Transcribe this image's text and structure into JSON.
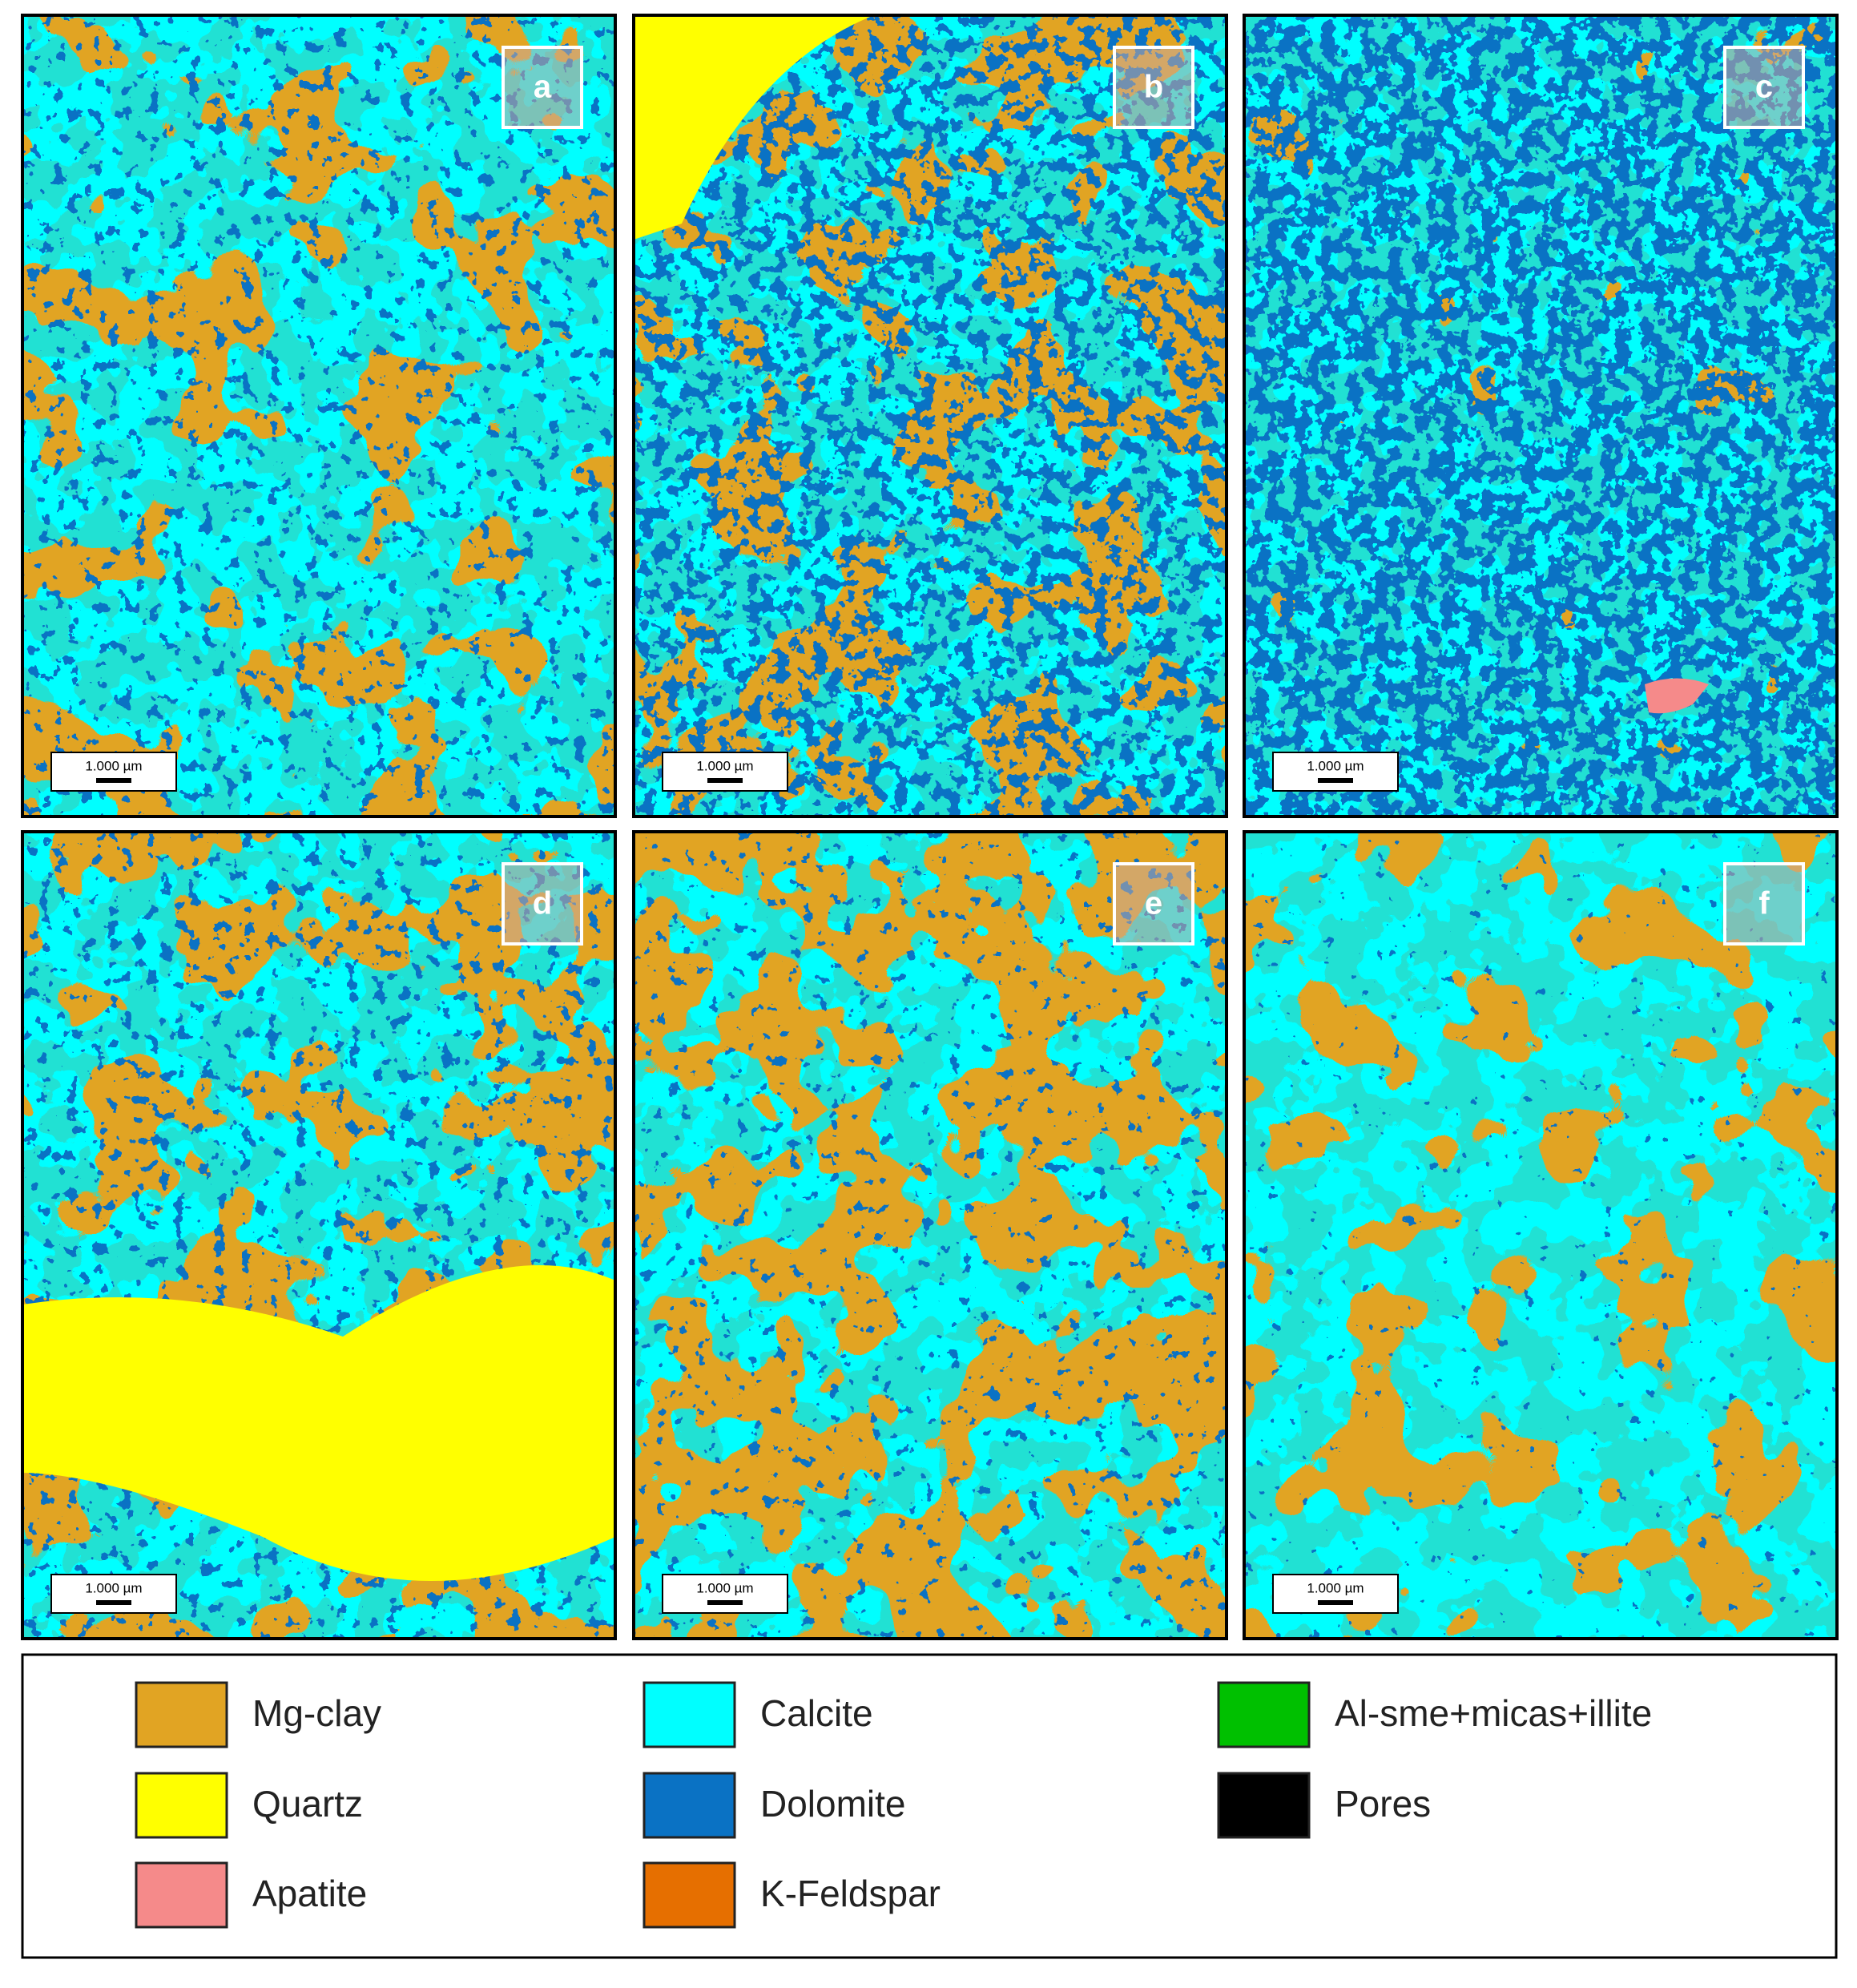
{
  "panels": [
    {
      "label": "a",
      "scale_bar": "1.000 µm"
    },
    {
      "label": "b",
      "scale_bar": "1.000 µm"
    },
    {
      "label": "c",
      "scale_bar": "1.000 µm"
    },
    {
      "label": "d",
      "scale_bar": "1.000 µm"
    },
    {
      "label": "e",
      "scale_bar": "1.000 µm"
    },
    {
      "label": "f",
      "scale_bar": "1.000 µm"
    }
  ],
  "legend": [
    {
      "name": "Mg-clay",
      "color": "#e1a423"
    },
    {
      "name": "Quartz",
      "color": "#ffff00"
    },
    {
      "name": "Apatite",
      "color": "#f58a8a"
    },
    {
      "name": "Calcite",
      "color": "#00ffff"
    },
    {
      "name": "Dolomite",
      "color": "#0a72c4"
    },
    {
      "name": "K-Feldspar",
      "color": "#e66f00"
    },
    {
      "name": "Al-sme+micas+illite",
      "color": "#00c000"
    },
    {
      "name": "Pores",
      "color": "#000000"
    }
  ]
}
